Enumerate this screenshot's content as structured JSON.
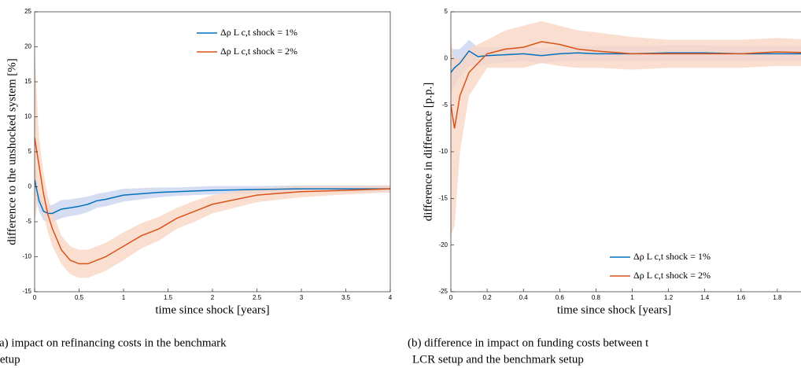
{
  "chart_data": [
    {
      "type": "line",
      "xlabel": "time since shock [years]",
      "ylabel": "difference to the unshocked system [%]",
      "caption": [
        "(a) impact on refinancing costs in the benchmark",
        "setup"
      ],
      "xlim": [
        0,
        4
      ],
      "ylim": [
        -15,
        25
      ],
      "xticks": [
        0,
        0.5,
        1,
        1.5,
        2,
        2.5,
        3,
        3.5,
        4
      ],
      "yticks": [
        -15,
        -10,
        -5,
        0,
        5,
        10,
        15,
        20,
        25
      ],
      "legend_loc": "upper right",
      "x": [
        0,
        0.05,
        0.1,
        0.15,
        0.2,
        0.3,
        0.4,
        0.5,
        0.6,
        0.7,
        0.8,
        1.0,
        1.2,
        1.4,
        1.6,
        1.8,
        2.0,
        2.5,
        3,
        3.5,
        4
      ],
      "series": [
        {
          "name": "Δρ L c,t shock = 1%",
          "color": "#0072bd",
          "band_color": "#c9d4ef",
          "values": [
            1,
            -2,
            -3.5,
            -3.8,
            -3.8,
            -3.2,
            -3,
            -2.8,
            -2.5,
            -2,
            -1.8,
            -1.2,
            -1,
            -0.8,
            -0.7,
            -0.6,
            -0.5,
            -0.4,
            -0.3,
            -0.3,
            -0.3
          ],
          "lower": [
            -1,
            -3.5,
            -4.8,
            -5,
            -5,
            -4.5,
            -4.2,
            -4,
            -3.6,
            -3,
            -2.8,
            -2.1,
            -1.8,
            -1.5,
            -1.3,
            -1.2,
            -1.1,
            -0.9,
            -0.8,
            -0.8,
            -0.8
          ],
          "upper": [
            3,
            -0.5,
            -2.2,
            -2.6,
            -2.6,
            -1.9,
            -1.8,
            -1.6,
            -1.4,
            -1,
            -0.8,
            -0.3,
            -0.2,
            -0.1,
            -0.1,
            0,
            0.1,
            0.1,
            0.2,
            0.2,
            0.2
          ]
        },
        {
          "name": "Δρ L c,t shock = 2%",
          "color": "#d95319",
          "band_color": "#f9d6c4",
          "values": [
            7,
            3,
            -1,
            -4,
            -6,
            -9,
            -10.5,
            -11,
            -11,
            -10.5,
            -10,
            -8.5,
            -7,
            -6,
            -4.5,
            -3.5,
            -2.5,
            -1.2,
            -0.7,
            -0.5,
            -0.3
          ],
          "lower": [
            -5,
            -1,
            -4,
            -6.5,
            -8.5,
            -11,
            -12.5,
            -13,
            -13,
            -12.5,
            -12,
            -10.5,
            -8.8,
            -7.7,
            -6,
            -5,
            -3.8,
            -2.2,
            -1.5,
            -1.1,
            -0.8
          ],
          "upper": [
            19,
            7,
            2,
            -1.5,
            -3.5,
            -7,
            -8.5,
            -9,
            -9,
            -8.5,
            -8,
            -6.5,
            -5.2,
            -4.3,
            -3,
            -2,
            -1.2,
            -0.2,
            0.1,
            0.1,
            0.2
          ]
        }
      ]
    },
    {
      "type": "line",
      "xlabel": "time since shock [years]",
      "ylabel": "difference in difference [p.p.]",
      "caption": [
        "(b) difference in impact on funding costs between t",
        "LCR setup and the benchmark setup"
      ],
      "xlim": [
        0,
        2
      ],
      "ylim": [
        -25,
        5
      ],
      "xticks": [
        0,
        0.2,
        0.4,
        0.6,
        0.8,
        1,
        1.2,
        1.4,
        1.6,
        1.8
      ],
      "yticks": [
        -25,
        -20,
        -15,
        -10,
        -5,
        0,
        5
      ],
      "legend_loc": "lower right",
      "x": [
        0,
        0.02,
        0.05,
        0.1,
        0.15,
        0.2,
        0.3,
        0.4,
        0.5,
        0.6,
        0.7,
        0.8,
        1.0,
        1.2,
        1.4,
        1.6,
        1.8,
        2.0
      ],
      "series": [
        {
          "name": "Δρ L c,t shock = 1%",
          "color": "#0072bd",
          "band_color": "#c9d4ef",
          "values": [
            -1.5,
            -1,
            -0.5,
            0.8,
            0.2,
            0.3,
            0.4,
            0.5,
            0.3,
            0.5,
            0.6,
            0.5,
            0.5,
            0.6,
            0.6,
            0.5,
            0.5,
            0.5
          ],
          "lower": [
            -4,
            -3,
            -2,
            -0.8,
            -0.8,
            -0.6,
            -0.4,
            -0.3,
            -0.5,
            -0.3,
            -0.2,
            -0.3,
            -0.3,
            -0.2,
            -0.2,
            -0.3,
            -0.3,
            -0.3
          ],
          "upper": [
            1,
            1,
            1,
            2,
            1.2,
            1.2,
            1.2,
            1.3,
            1.1,
            1.3,
            1.4,
            1.3,
            1.3,
            1.4,
            1.4,
            1.3,
            1.3,
            1.3
          ]
        },
        {
          "name": "Δρ L c,t shock = 2%",
          "color": "#d95319",
          "band_color": "#f9d6c4",
          "values": [
            -5,
            -7.5,
            -4,
            -1.5,
            -0.5,
            0.5,
            1,
            1.2,
            1.8,
            1.5,
            1,
            0.8,
            0.5,
            0.5,
            0.5,
            0.5,
            0.7,
            0.6
          ],
          "lower": [
            -19,
            -18,
            -10,
            -4,
            -2.5,
            -1,
            -1,
            -1,
            -0.5,
            -0.8,
            -1,
            -1,
            -1.2,
            -1,
            -1,
            -1,
            -0.8,
            -0.8
          ],
          "upper": [
            2,
            0,
            0,
            1,
            1.5,
            2,
            3,
            3.5,
            4,
            3.5,
            3,
            2.8,
            2.3,
            2,
            2,
            2,
            2.2,
            2
          ]
        }
      ]
    }
  ]
}
